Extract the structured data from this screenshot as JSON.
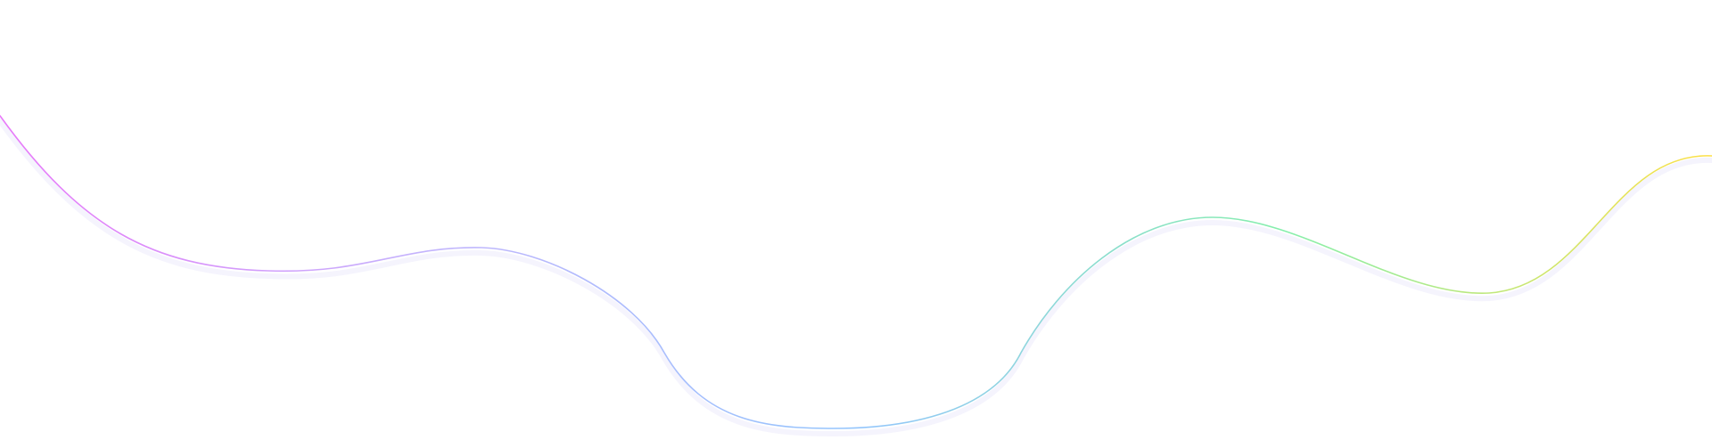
{
  "background": "#ffffff",
  "decorative_line": {
    "gradient_colors": [
      "#e879f9",
      "#c4b5fd",
      "#93c5fd",
      "#86efac",
      "#fde047"
    ],
    "shadow_color": "#c7c2f5"
  }
}
